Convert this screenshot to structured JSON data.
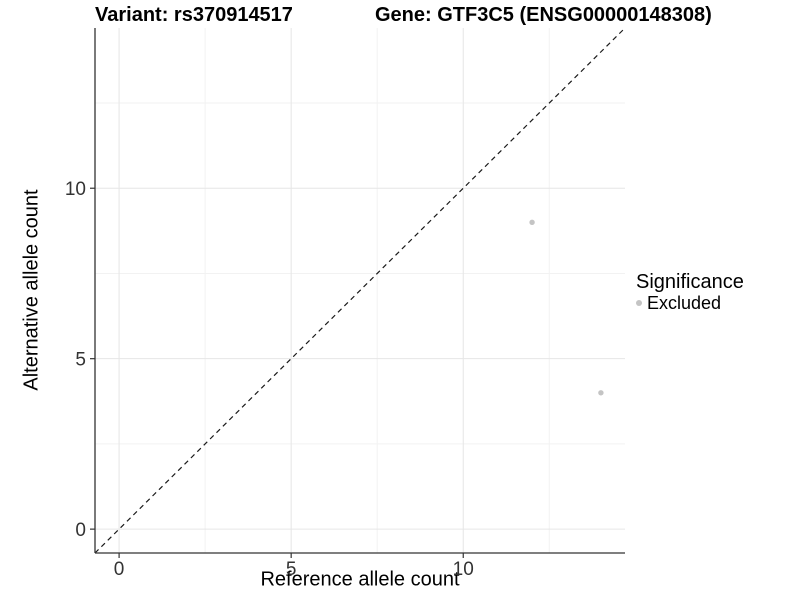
{
  "titles": {
    "variant": "Variant: rs370914517",
    "gene": "Gene: GTF3C5 (ENSG00000148308)"
  },
  "chart_data": {
    "type": "scatter",
    "xlabel": "Reference allele count",
    "ylabel": "Alternative allele count",
    "xlim": [
      -0.7,
      14.7
    ],
    "ylim": [
      -0.7,
      14.7
    ],
    "x_ticks": [
      0,
      5,
      10
    ],
    "y_ticks": [
      0,
      5,
      10
    ],
    "x_minor_ticks": [
      2.5,
      7.5,
      12.5
    ],
    "y_minor_ticks": [
      2.5,
      7.5,
      12.5
    ],
    "grid": true,
    "series": [
      {
        "name": "Excluded",
        "color": "#c4c4c4",
        "points": [
          {
            "x": 12,
            "y": 9
          },
          {
            "x": 14,
            "y": 4
          }
        ]
      }
    ],
    "reference_line": {
      "type": "identity",
      "style": "dashed",
      "color": "#1a1a1a"
    },
    "legend": {
      "title": "Significance",
      "position": "right",
      "items": [
        {
          "label": "Excluded",
          "color": "#c4c4c4"
        }
      ]
    },
    "colors": {
      "grid_major": "#e6e6e6",
      "grid_minor": "#f2f2f2",
      "axis_line": "#333333",
      "tick_text": "#333333"
    }
  }
}
